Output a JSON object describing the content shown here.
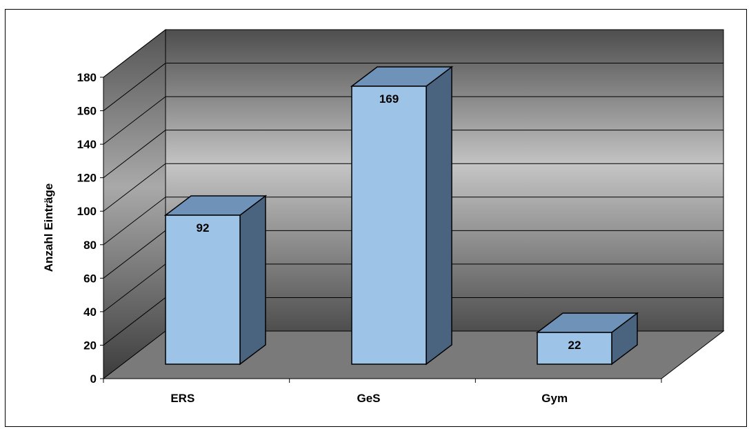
{
  "chart_data": {
    "type": "bar",
    "title": "",
    "xlabel": "",
    "ylabel": "Anzahl Einträge",
    "categories": [
      "ERS",
      "GeS",
      "Gym"
    ],
    "values": [
      92,
      169,
      22
    ],
    "ylim": [
      0,
      180
    ],
    "yticks": [
      0,
      20,
      40,
      60,
      80,
      100,
      120,
      140,
      160,
      180
    ],
    "grid": true,
    "legend": "none",
    "colors": {
      "bar_front": "#9dc3e6",
      "bar_top": "#6f93b8",
      "bar_side": "#4a6480",
      "floor": "#7a7a7a",
      "wall_light": "#c4c4c4",
      "wall_dark": "#4e4e4e"
    }
  }
}
